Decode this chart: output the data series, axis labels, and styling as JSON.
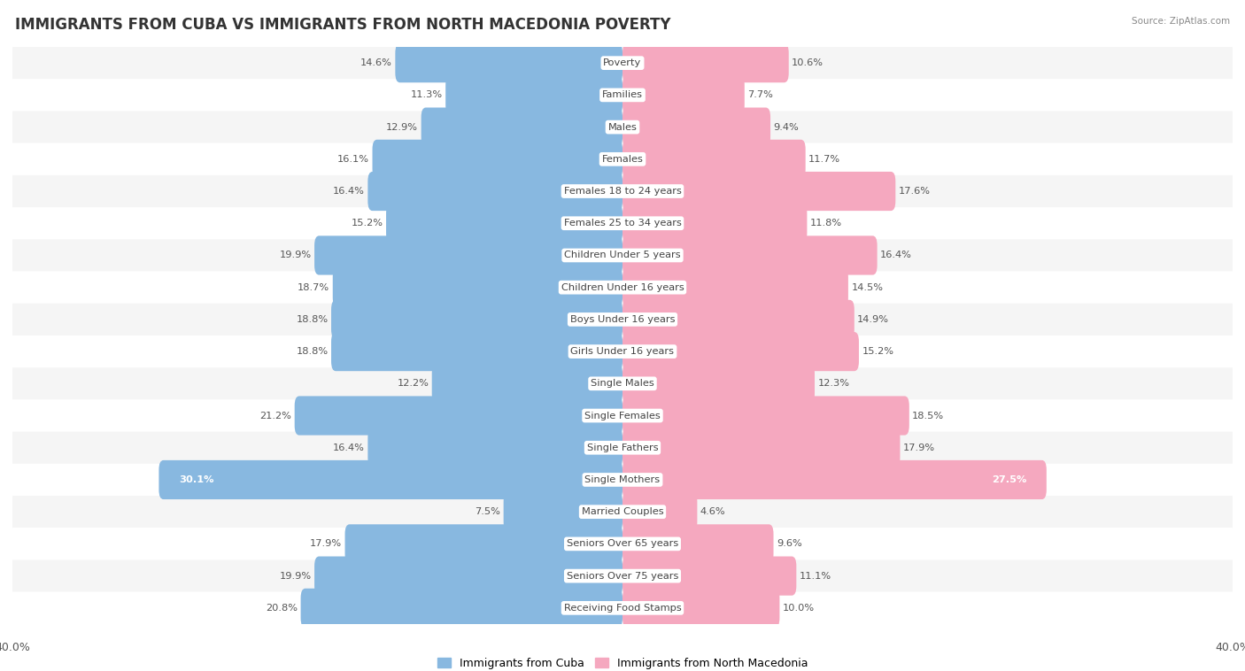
{
  "title": "IMMIGRANTS FROM CUBA VS IMMIGRANTS FROM NORTH MACEDONIA POVERTY",
  "source": "Source: ZipAtlas.com",
  "categories": [
    "Poverty",
    "Families",
    "Males",
    "Females",
    "Females 18 to 24 years",
    "Females 25 to 34 years",
    "Children Under 5 years",
    "Children Under 16 years",
    "Boys Under 16 years",
    "Girls Under 16 years",
    "Single Males",
    "Single Females",
    "Single Fathers",
    "Single Mothers",
    "Married Couples",
    "Seniors Over 65 years",
    "Seniors Over 75 years",
    "Receiving Food Stamps"
  ],
  "cuba_values": [
    14.6,
    11.3,
    12.9,
    16.1,
    16.4,
    15.2,
    19.9,
    18.7,
    18.8,
    18.8,
    12.2,
    21.2,
    16.4,
    30.1,
    7.5,
    17.9,
    19.9,
    20.8
  ],
  "macedonia_values": [
    10.6,
    7.7,
    9.4,
    11.7,
    17.6,
    11.8,
    16.4,
    14.5,
    14.9,
    15.2,
    12.3,
    18.5,
    17.9,
    27.5,
    4.6,
    9.6,
    11.1,
    10.0
  ],
  "cuba_color": "#88b8e0",
  "macedonia_color": "#f5a8bf",
  "cuba_label": "Immigrants from Cuba",
  "macedonia_label": "Immigrants from North Macedonia",
  "axis_limit": 40.0,
  "bar_height": 0.62,
  "bg_color": "#ffffff",
  "row_bg_light": "#f5f5f5",
  "row_bg_white": "#ffffff",
  "title_fontsize": 12,
  "label_fontsize": 8.2,
  "value_fontsize": 8.2
}
